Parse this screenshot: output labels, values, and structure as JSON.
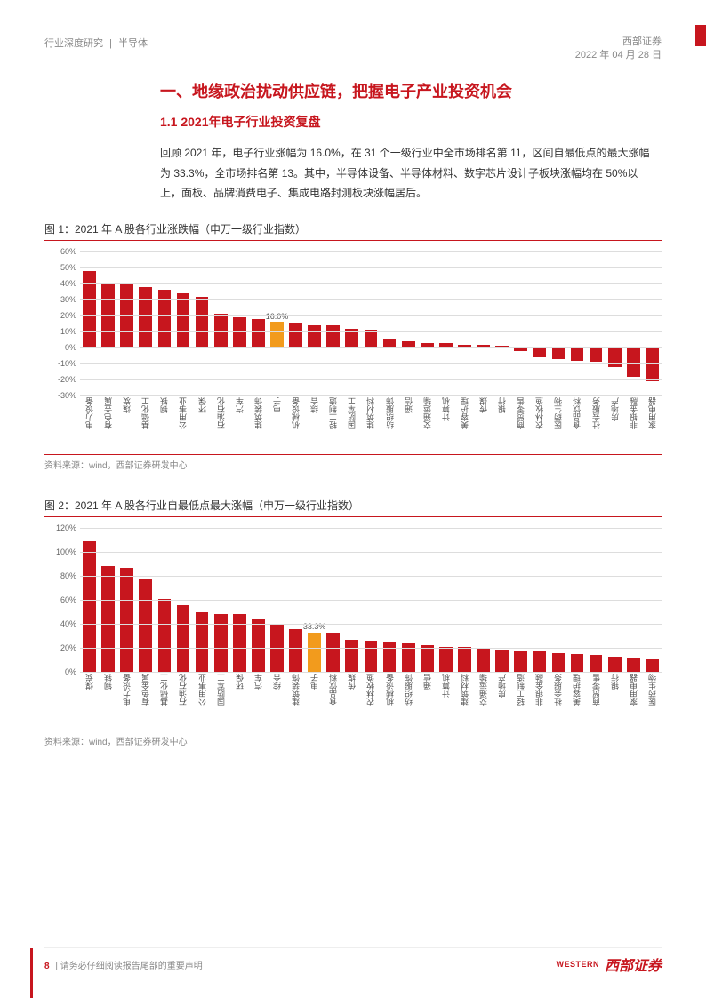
{
  "header": {
    "category": "行业深度研究",
    "industry": "半导体",
    "company": "西部证券",
    "date": "2022 年 04 月 28 日"
  },
  "section_title": "一、地缘政治扰动供应链，把握电子产业投资机会",
  "subsection_title": "1.1 2021年电子行业投资复盘",
  "body_text": "回顾 2021 年，电子行业涨幅为 16.0%，在 31 个一级行业中全市场排名第 11，区间自最低点的最大涨幅为 33.3%，全市场排名第 13。其中，半导体设备、半导体材料、数字芯片设计子板块涨幅均在 50%以上，面板、品牌消费电子、集成电路封测板块涨幅居后。",
  "chart1": {
    "title": "图 1：2021 年 A 股各行业涨跌幅（申万一级行业指数）",
    "source": "资料来源：wind，西部证券研发中心",
    "ymin": -30,
    "ymax": 60,
    "ystep": 10,
    "bar_color": "#c7161e",
    "highlight_color": "#f29b1d",
    "highlight_index": 10,
    "highlight_label": "16.0%",
    "categories": [
      "电力设备",
      "有色金属",
      "煤炭",
      "基础化工",
      "钢铁",
      "公用事业",
      "环保",
      "石油石化",
      "汽车",
      "建筑装饰",
      "电子",
      "机械设备",
      "综合",
      "轻工制造",
      "国防军工",
      "建筑材料",
      "纺织服饰",
      "通信",
      "交通运输",
      "计算机",
      "美容护理",
      "传媒",
      "银行",
      "商贸零售",
      "农林牧渔",
      "医药生物",
      "食品饮料",
      "社会服务",
      "房地产",
      "非银金融",
      "家用电器"
    ],
    "values": [
      48,
      40,
      40,
      38,
      36,
      34,
      32,
      21,
      19,
      18,
      16,
      15,
      14,
      14,
      12,
      11,
      5,
      4,
      3,
      3,
      2,
      2,
      1,
      -2,
      -6,
      -7,
      -8,
      -9,
      -12,
      -18,
      -21
    ]
  },
  "chart2": {
    "title": "图 2：2021 年 A 股各行业自最低点最大涨幅（申万一级行业指数）",
    "source": "资料来源：wind，西部证券研发中心",
    "ymin": 0,
    "ymax": 120,
    "ystep": 20,
    "bar_color": "#c7161e",
    "highlight_color": "#f29b1d",
    "highlight_index": 12,
    "highlight_label": "33.3%",
    "categories": [
      "煤炭",
      "钢铁",
      "电力设备",
      "有色金属",
      "基础化工",
      "石油石化",
      "公用事业",
      "国防军工",
      "环保",
      "汽车",
      "综合",
      "建筑装饰",
      "电子",
      "食品饮料",
      "传媒",
      "农林牧渔",
      "机械设备",
      "纺织服饰",
      "通信",
      "计算机",
      "建筑材料",
      "交通运输",
      "房地产",
      "轻工制造",
      "非银金融",
      "社会服务",
      "美容护理",
      "商贸零售",
      "银行",
      "家用电器",
      "医药生物"
    ],
    "values": [
      109,
      88,
      87,
      78,
      61,
      56,
      50,
      48,
      48,
      44,
      40,
      36,
      33,
      33,
      27,
      26,
      25,
      24,
      22,
      21,
      21,
      20,
      19,
      18,
      17,
      16,
      15,
      14,
      13,
      12,
      11
    ]
  },
  "footer": {
    "page": "8",
    "disclaimer": "请务必仔细阅读报告尾部的重要声明",
    "logo_en": "WESTERN",
    "logo_cn": "西部证券"
  }
}
